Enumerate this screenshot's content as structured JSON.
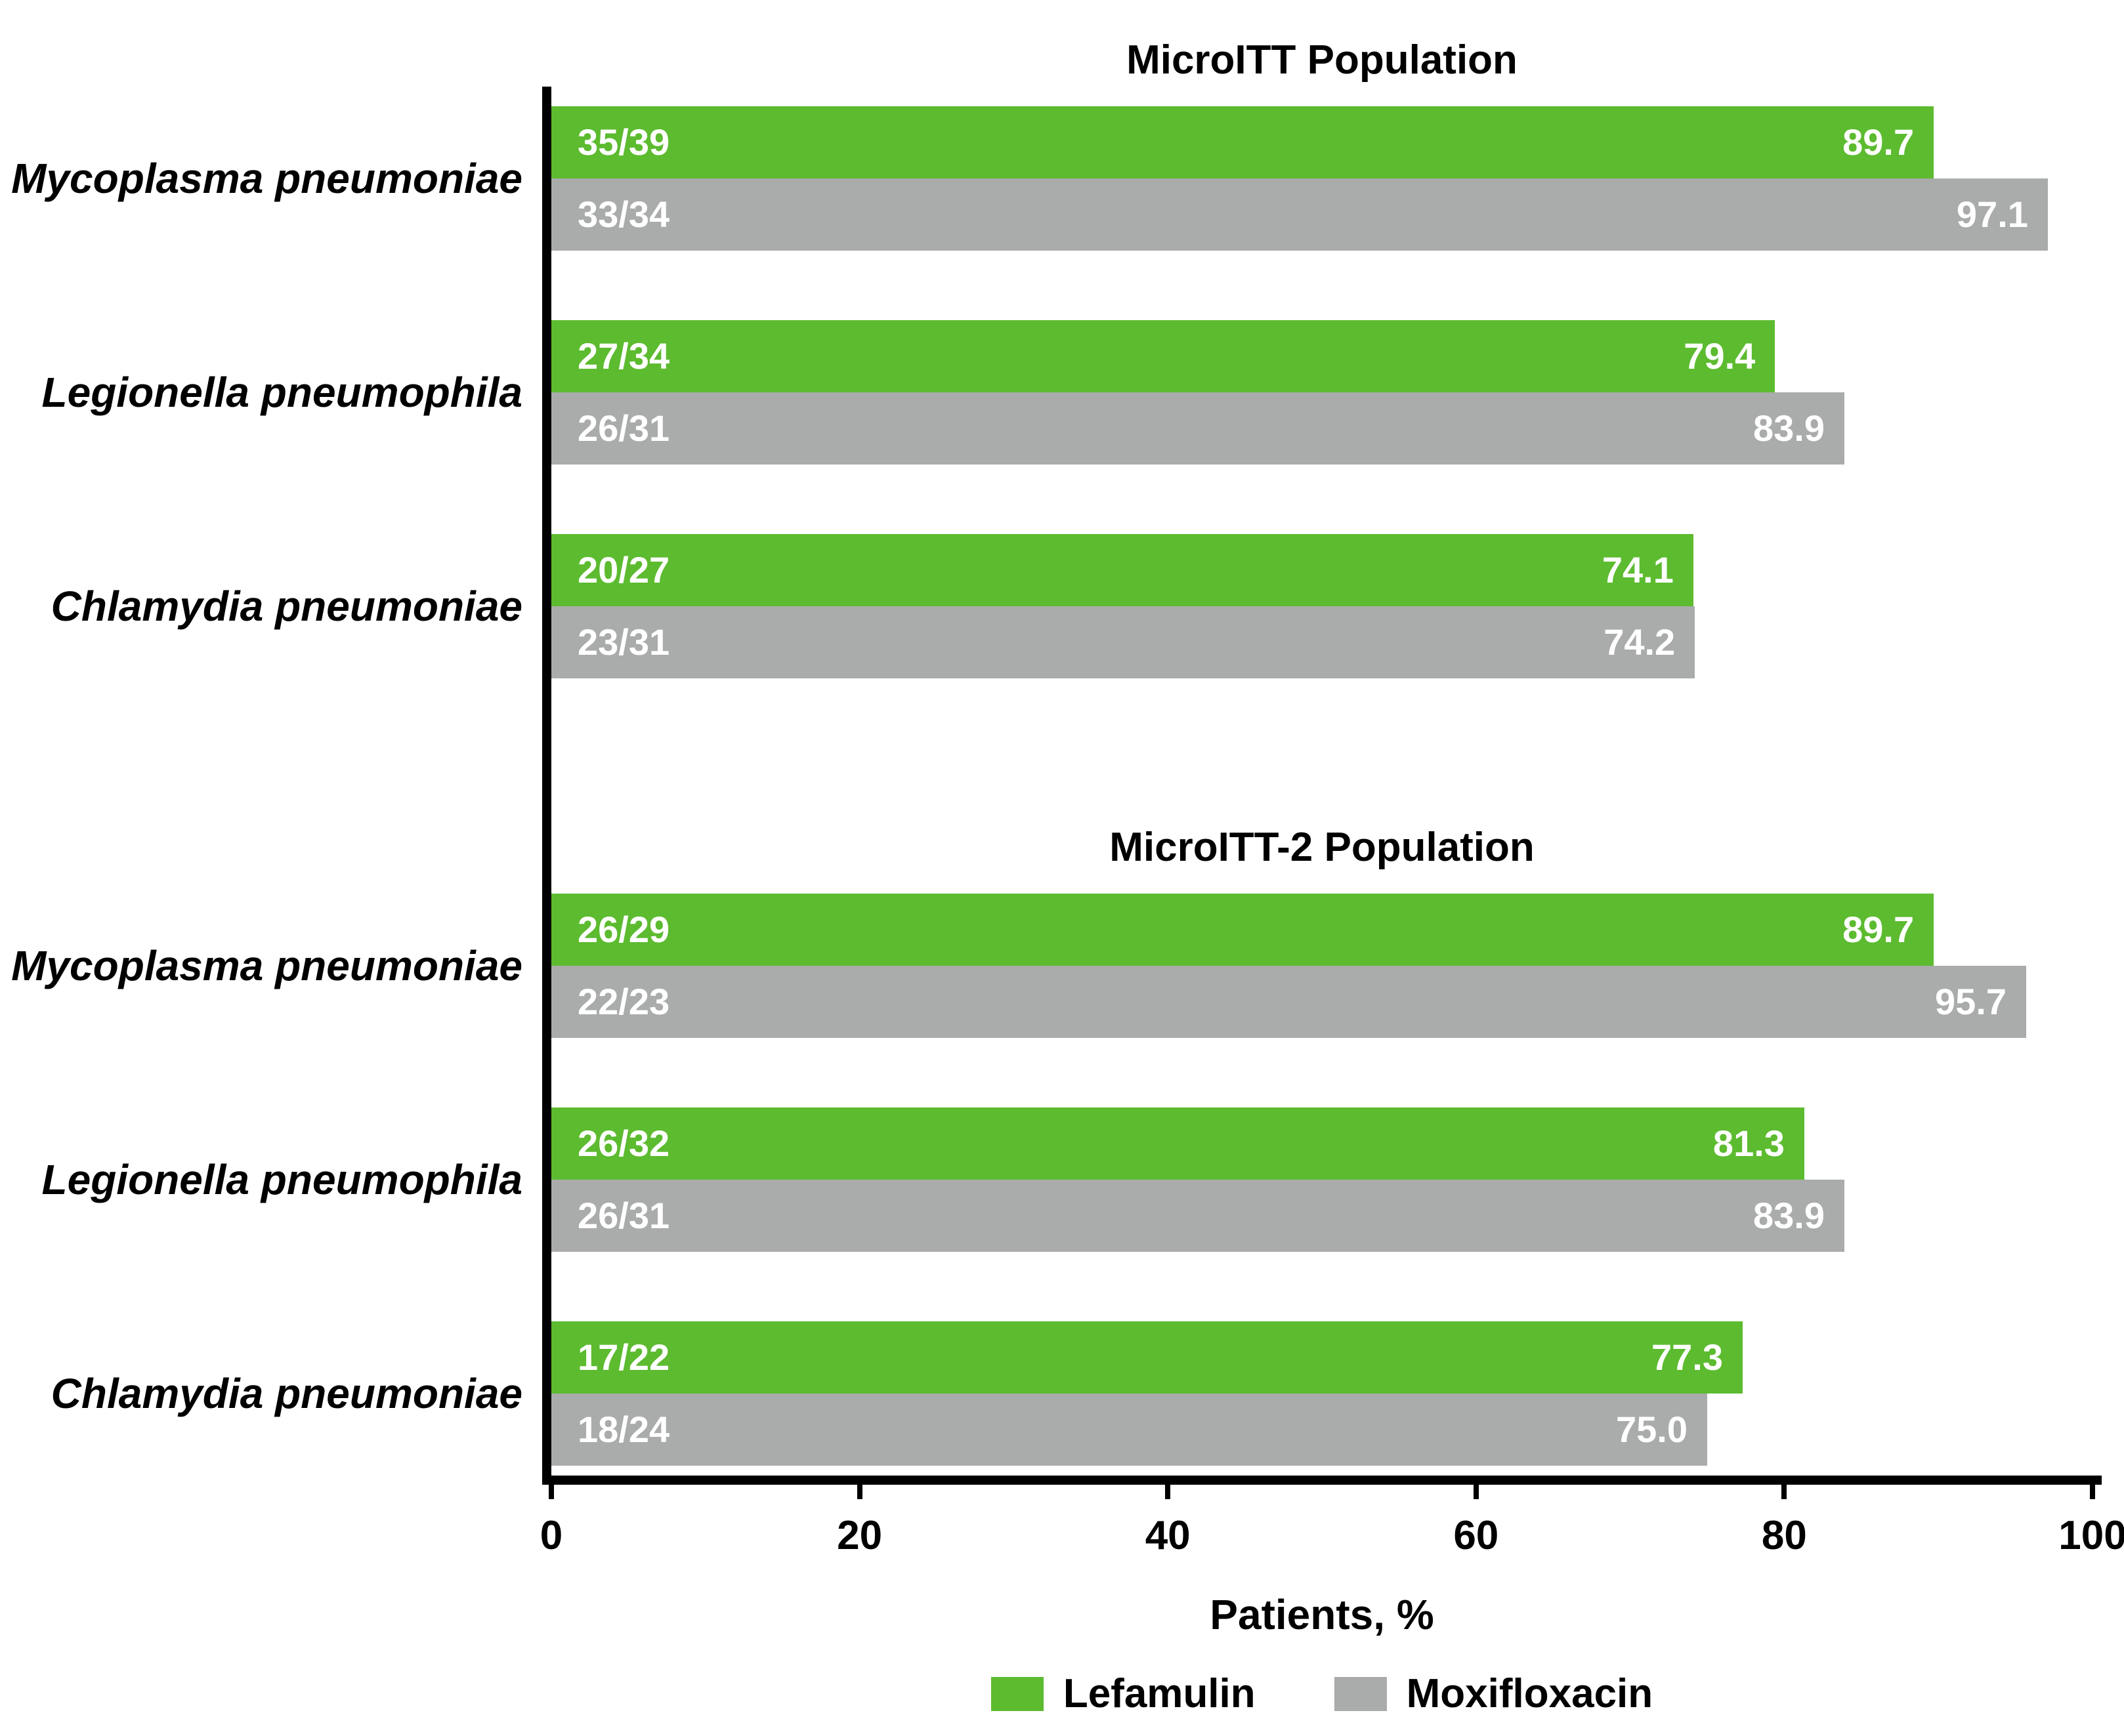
{
  "colors": {
    "lefamulin": "#5cbb2f",
    "moxifloxacin": "#a9acaa",
    "axis": "#000000",
    "bar_label": "#ffffff"
  },
  "chart_data": {
    "type": "bar",
    "orientation": "horizontal",
    "xlabel": "Patients, %",
    "xlim": [
      0,
      100
    ],
    "xticks": [
      "0",
      "20",
      "40",
      "60",
      "80",
      "100"
    ],
    "grid": false,
    "legend_position": "bottom",
    "legend": [
      {
        "name": "Lefamulin",
        "color": "#5cbb2f"
      },
      {
        "name": "Moxifloxacin",
        "color": "#a9acaa"
      }
    ],
    "sections": [
      {
        "title": "MicroITT Population",
        "categories": [
          "Mycoplasma pneumoniae",
          "Legionella pneumophila",
          "Chlamydia pneumoniae"
        ],
        "series": [
          {
            "name": "Lefamulin",
            "values": [
              89.7,
              79.4,
              74.1
            ],
            "value_labels": [
              "89.7",
              "79.4",
              "74.1"
            ],
            "counts": [
              "35/39",
              "27/34",
              "20/27"
            ]
          },
          {
            "name": "Moxifloxacin",
            "values": [
              97.1,
              83.9,
              74.2
            ],
            "value_labels": [
              "97.1",
              "83.9",
              "74.2"
            ],
            "counts": [
              "33/34",
              "26/31",
              "23/31"
            ]
          }
        ]
      },
      {
        "title": "MicroITT-2 Population",
        "categories": [
          "Mycoplasma pneumoniae",
          "Legionella pneumophila",
          "Chlamydia pneumoniae"
        ],
        "series": [
          {
            "name": "Lefamulin",
            "values": [
              89.7,
              81.3,
              77.3
            ],
            "value_labels": [
              "89.7",
              "81.3",
              "77.3"
            ],
            "counts": [
              "26/29",
              "26/32",
              "17/22"
            ]
          },
          {
            "name": "Moxifloxacin",
            "values": [
              95.7,
              83.9,
              75.0
            ],
            "value_labels": [
              "95.7",
              "83.9",
              "75.0"
            ],
            "counts": [
              "22/23",
              "26/31",
              "18/24"
            ]
          }
        ]
      }
    ]
  }
}
